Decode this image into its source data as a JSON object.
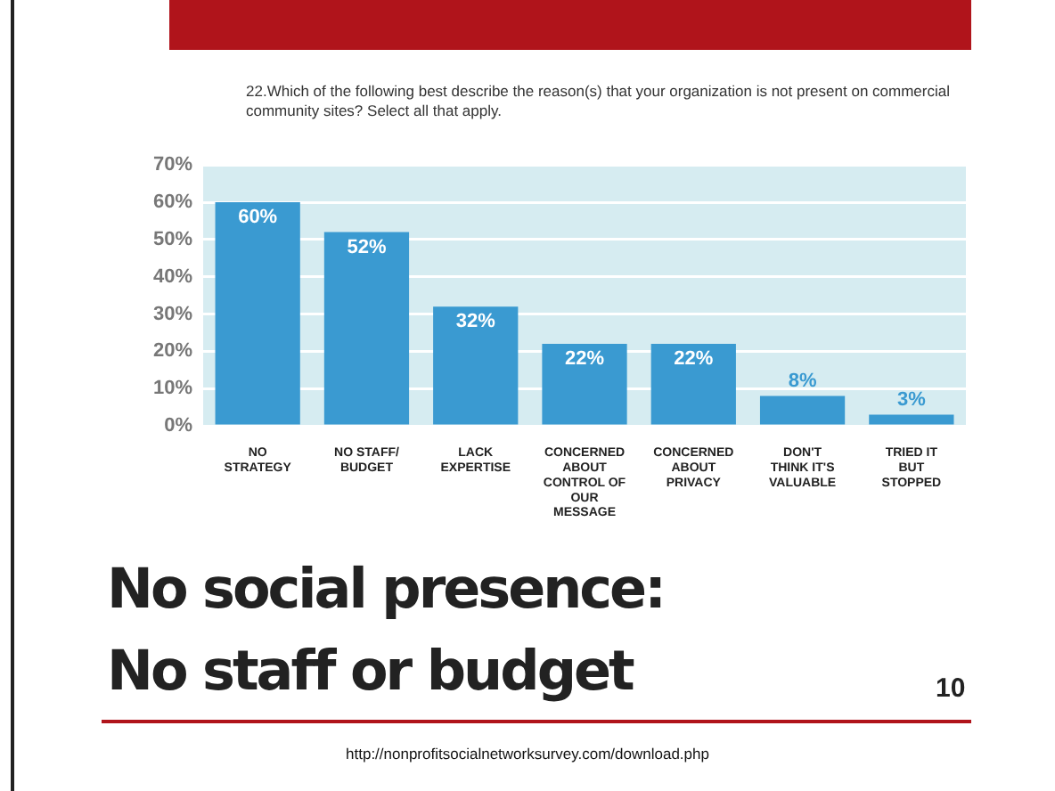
{
  "chart_data": {
    "type": "bar",
    "title": "No social presence:\nNo staff or budget",
    "subtitle": "22.Which of the following best describe the reason(s) that your organization is not present on commercial community sites? Select all that apply.",
    "categories": [
      "NO STRATEGY",
      "NO STAFF/ BUDGET",
      "LACK EXPERTISE",
      "CONCERNED ABOUT CONTROL OF OUR MESSAGE",
      "CONCERNED ABOUT PRIVACY",
      "DON'T THINK IT'S VALUABLE",
      "TRIED IT BUT STOPPED"
    ],
    "values": [
      60,
      52,
      32,
      22,
      22,
      8,
      3
    ],
    "value_labels": [
      "60%",
      "52%",
      "32%",
      "22%",
      "22%",
      "8%",
      "3%"
    ],
    "color": "#3a9ad1",
    "ylim": [
      0,
      70
    ],
    "yticks": [
      {
        "value": 0,
        "label": "0%"
      },
      {
        "value": 10,
        "label": "10%"
      },
      {
        "value": 20,
        "label": "20%"
      },
      {
        "value": 30,
        "label": "30%"
      },
      {
        "value": 40,
        "label": "40%"
      },
      {
        "value": 50,
        "label": "50%"
      },
      {
        "value": 60,
        "label": "60%"
      },
      {
        "value": 70,
        "label": "70%"
      }
    ],
    "grid": "y",
    "legend": false,
    "annotations": [
      "10",
      "http://nonprofitsocialnetworksurvey.com/download.php"
    ]
  }
}
